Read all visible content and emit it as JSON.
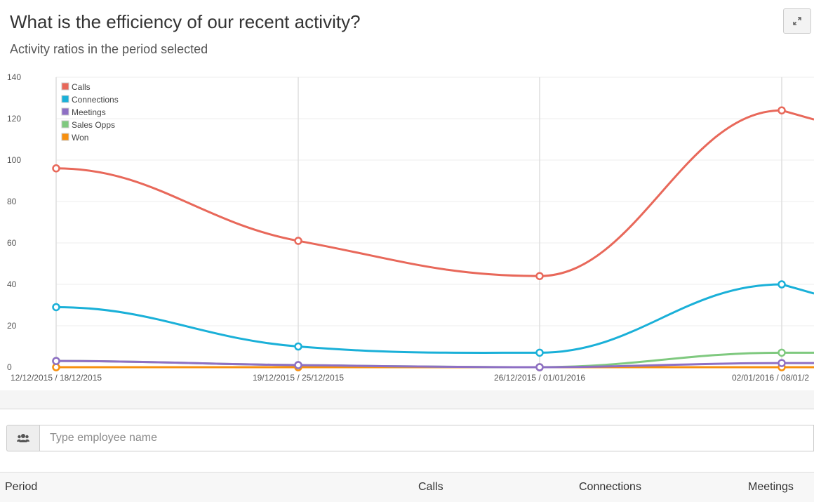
{
  "header": {
    "title": "What is the efficiency of our recent activity?",
    "subtitle": "Activity ratios in the period selected",
    "expand_icon": "expand-arrows-icon"
  },
  "chart_data": {
    "type": "line",
    "categories": [
      "12/12/2015 / 18/12/2015",
      "19/12/2015 / 25/12/2015",
      "26/12/2015 / 01/01/2016",
      "02/01/2016 / 08/01/2"
    ],
    "y_ticks": [
      "0",
      "20",
      "40",
      "60",
      "80",
      "100",
      "120",
      "140"
    ],
    "ylim": [
      0,
      140
    ],
    "grid": true,
    "legend_position": "top-left",
    "series": [
      {
        "name": "Calls",
        "color": "#e8685a",
        "values": [
          96,
          61,
          44,
          124
        ]
      },
      {
        "name": "Connections",
        "color": "#1ab0d8",
        "values": [
          29,
          10,
          7,
          40
        ]
      },
      {
        "name": "Meetings",
        "color": "#8e6fc4",
        "values": [
          3,
          1,
          0,
          2
        ]
      },
      {
        "name": "Sales Opps",
        "color": "#7fc97f",
        "values": [
          3,
          1,
          0,
          7
        ]
      },
      {
        "name": "Won",
        "color": "#f7900f",
        "values": [
          0,
          0,
          0,
          0
        ]
      }
    ]
  },
  "filter": {
    "icon": "users-icon",
    "placeholder": "Type employee name",
    "value": ""
  },
  "table": {
    "headers": [
      "Period",
      "Calls",
      "Connections",
      "Meetings"
    ]
  }
}
